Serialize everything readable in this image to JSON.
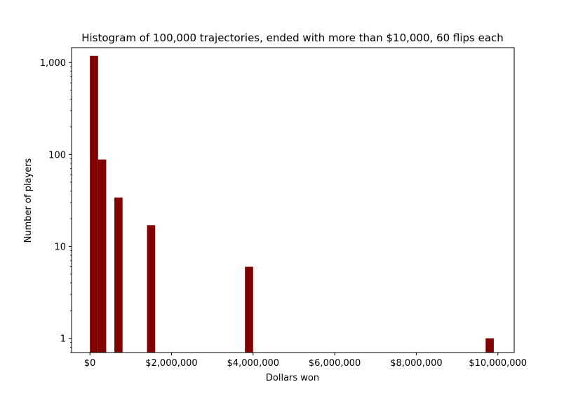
{
  "chart_data": {
    "type": "bar",
    "title": "Histogram of 100,000 trajectories, ended with more than $10,000,  60 flips each",
    "xlabel": "Dollars won",
    "ylabel": "Number of players",
    "yscale": "log",
    "xlim": [
      -450000,
      10400000
    ],
    "ylim": [
      0.7,
      1450
    ],
    "bar_color": "#800000",
    "bins": [
      {
        "x0": 0,
        "x1": 200000,
        "count": 1180
      },
      {
        "x0": 200000,
        "x1": 400000,
        "count": 88
      },
      {
        "x0": 600000,
        "x1": 800000,
        "count": 34
      },
      {
        "x0": 1400000,
        "x1": 1600000,
        "count": 17
      },
      {
        "x0": 3800000,
        "x1": 4000000,
        "count": 6
      },
      {
        "x0": 9700000,
        "x1": 9900000,
        "count": 1
      }
    ],
    "x_ticks": [
      {
        "value": 0,
        "label": "$0"
      },
      {
        "value": 2000000,
        "label": "$2,000,000"
      },
      {
        "value": 4000000,
        "label": "$4,000,000"
      },
      {
        "value": 6000000,
        "label": "$6,000,000"
      },
      {
        "value": 8000000,
        "label": "$8,000,000"
      },
      {
        "value": 10000000,
        "label": "$10,000,000"
      }
    ],
    "y_ticks": [
      {
        "value": 1,
        "label": "1"
      },
      {
        "value": 10,
        "label": "10"
      },
      {
        "value": 100,
        "label": "100"
      },
      {
        "value": 1000,
        "label": "1,000"
      }
    ]
  }
}
